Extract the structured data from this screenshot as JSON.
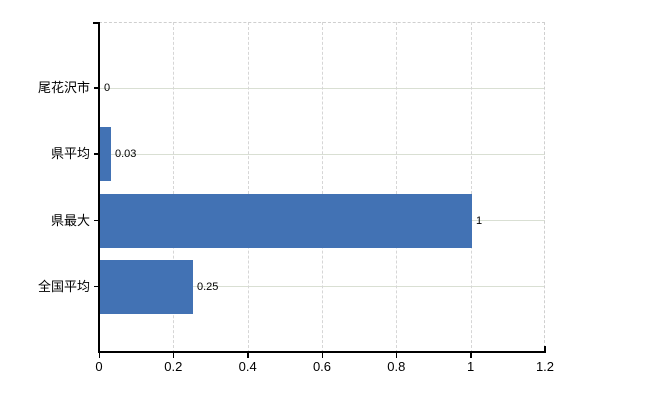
{
  "chart_data": {
    "type": "bar",
    "orientation": "horizontal",
    "title": "",
    "categories": [
      "尾花沢市",
      "県平均",
      "県最大",
      "全国平均"
    ],
    "values": [
      0,
      0.03,
      1,
      0.25
    ],
    "value_labels": [
      "0",
      "0.03",
      "1",
      "0.25"
    ],
    "x_tick_values": [
      0,
      0.2,
      0.4,
      0.6,
      0.8,
      1,
      1.2
    ],
    "x_tick_labels": [
      "0",
      "0.2",
      "0.4",
      "0.6",
      "0.8",
      "1",
      "1.2"
    ],
    "xlim": [
      0,
      1.2
    ],
    "grid": true,
    "legend_position": "none",
    "colors": {
      "bar": "#4272b4",
      "grid_horizontal": "#d9dfd3",
      "grid_vertical": "#d6d6d6",
      "plot_border_dashed": "#cfcfcf",
      "axis": "#000000",
      "text": "#000000",
      "background": "#ffffff"
    }
  }
}
